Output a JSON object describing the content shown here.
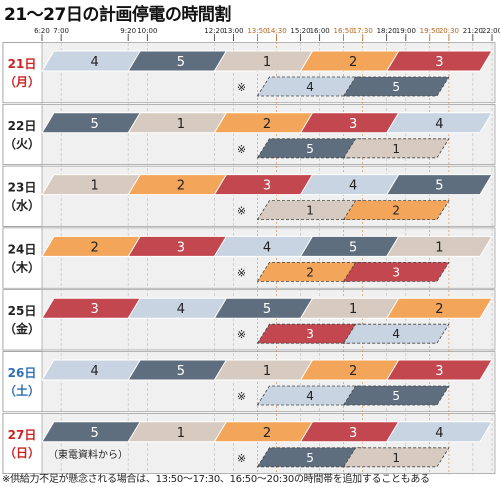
{
  "title": "21〜27日の計画停電の時間割",
  "footnote": "※供給力不足が懸念される場合は、13:50〜17:30、16:50〜20:30の時間帯を追加することもある",
  "source": "（東電資料から）",
  "colors": {
    "1": "#d7cbc1",
    "2": "#f3a55a",
    "3": "#c2474e",
    "4": "#c8d4e1",
    "5": "#5f6e7e",
    "weekday_label": "#222222",
    "saturday_label": "#2e6fb7",
    "sunday_label": "#cc2222",
    "row_bg": "#f0f0f0",
    "grid": "#bbbbbb"
  },
  "chart_data": {
    "type": "gantt",
    "x_ticks_top": [
      "6:20",
      "7:00",
      "9:20",
      "10:00",
      "12:20",
      "13:00",
      "13:50",
      "14:30",
      "15:20",
      "16:00",
      "16:50",
      "17:30",
      "18:20",
      "19:00",
      "19:50",
      "20:30",
      "21:20",
      "22:00"
    ],
    "x_ticks_highlight": [
      "13:50",
      "14:30",
      "16:50",
      "17:30",
      "19:50",
      "20:30"
    ],
    "x_range": [
      "6:20",
      "22:00"
    ],
    "extra_marker": "※",
    "days": [
      {
        "date": "21日",
        "weekday": "（月）",
        "type": "holiday",
        "slots": [
          {
            "group": "4",
            "start": "6:20",
            "end": "10:00"
          },
          {
            "group": "5",
            "start": "9:20",
            "end": "13:00"
          },
          {
            "group": "1",
            "start": "12:20",
            "end": "16:00"
          },
          {
            "group": "2",
            "start": "15:20",
            "end": "19:00"
          },
          {
            "group": "3",
            "start": "18:20",
            "end": "22:00"
          }
        ],
        "extra": [
          {
            "group": "4",
            "start": "13:50",
            "end": "17:30"
          },
          {
            "group": "5",
            "start": "16:50",
            "end": "20:30"
          }
        ]
      },
      {
        "date": "22日",
        "weekday": "（火）",
        "type": "weekday",
        "slots": [
          {
            "group": "5",
            "start": "6:20",
            "end": "10:00"
          },
          {
            "group": "1",
            "start": "9:20",
            "end": "13:00"
          },
          {
            "group": "2",
            "start": "12:20",
            "end": "16:00"
          },
          {
            "group": "3",
            "start": "15:20",
            "end": "19:00"
          },
          {
            "group": "4",
            "start": "18:20",
            "end": "22:00"
          }
        ],
        "extra": [
          {
            "group": "5",
            "start": "13:50",
            "end": "17:30"
          },
          {
            "group": "1",
            "start": "16:50",
            "end": "20:30"
          }
        ]
      },
      {
        "date": "23日",
        "weekday": "（水）",
        "type": "weekday",
        "slots": [
          {
            "group": "1",
            "start": "6:20",
            "end": "10:00"
          },
          {
            "group": "2",
            "start": "9:20",
            "end": "13:00"
          },
          {
            "group": "3",
            "start": "12:20",
            "end": "16:00"
          },
          {
            "group": "4",
            "start": "15:20",
            "end": "19:00"
          },
          {
            "group": "5",
            "start": "18:20",
            "end": "22:00"
          }
        ],
        "extra": [
          {
            "group": "1",
            "start": "13:50",
            "end": "17:30"
          },
          {
            "group": "2",
            "start": "16:50",
            "end": "20:30"
          }
        ]
      },
      {
        "date": "24日",
        "weekday": "（木）",
        "type": "weekday",
        "slots": [
          {
            "group": "2",
            "start": "6:20",
            "end": "10:00"
          },
          {
            "group": "3",
            "start": "9:20",
            "end": "13:00"
          },
          {
            "group": "4",
            "start": "12:20",
            "end": "16:00"
          },
          {
            "group": "5",
            "start": "15:20",
            "end": "19:00"
          },
          {
            "group": "1",
            "start": "18:20",
            "end": "22:00"
          }
        ],
        "extra": [
          {
            "group": "2",
            "start": "13:50",
            "end": "17:30"
          },
          {
            "group": "3",
            "start": "16:50",
            "end": "20:30"
          }
        ]
      },
      {
        "date": "25日",
        "weekday": "（金）",
        "type": "weekday",
        "slots": [
          {
            "group": "3",
            "start": "6:20",
            "end": "10:00"
          },
          {
            "group": "4",
            "start": "9:20",
            "end": "13:00"
          },
          {
            "group": "5",
            "start": "12:20",
            "end": "16:00"
          },
          {
            "group": "1",
            "start": "15:20",
            "end": "19:00"
          },
          {
            "group": "2",
            "start": "18:20",
            "end": "22:00"
          }
        ],
        "extra": [
          {
            "group": "3",
            "start": "13:50",
            "end": "17:30"
          },
          {
            "group": "4",
            "start": "16:50",
            "end": "20:30"
          }
        ]
      },
      {
        "date": "26日",
        "weekday": "（土）",
        "type": "saturday",
        "slots": [
          {
            "group": "4",
            "start": "6:20",
            "end": "10:00"
          },
          {
            "group": "5",
            "start": "9:20",
            "end": "13:00"
          },
          {
            "group": "1",
            "start": "12:20",
            "end": "16:00"
          },
          {
            "group": "2",
            "start": "15:20",
            "end": "19:00"
          },
          {
            "group": "3",
            "start": "18:20",
            "end": "22:00"
          }
        ],
        "extra": [
          {
            "group": "4",
            "start": "13:50",
            "end": "17:30"
          },
          {
            "group": "5",
            "start": "16:50",
            "end": "20:30"
          }
        ]
      },
      {
        "date": "27日",
        "weekday": "（日）",
        "type": "holiday",
        "slots": [
          {
            "group": "5",
            "start": "6:20",
            "end": "10:00"
          },
          {
            "group": "1",
            "start": "9:20",
            "end": "13:00"
          },
          {
            "group": "2",
            "start": "12:20",
            "end": "16:00"
          },
          {
            "group": "3",
            "start": "15:20",
            "end": "19:00"
          },
          {
            "group": "4",
            "start": "18:20",
            "end": "22:00"
          }
        ],
        "extra": [
          {
            "group": "5",
            "start": "13:50",
            "end": "17:30"
          },
          {
            "group": "1",
            "start": "16:50",
            "end": "20:30"
          }
        ]
      }
    ]
  }
}
